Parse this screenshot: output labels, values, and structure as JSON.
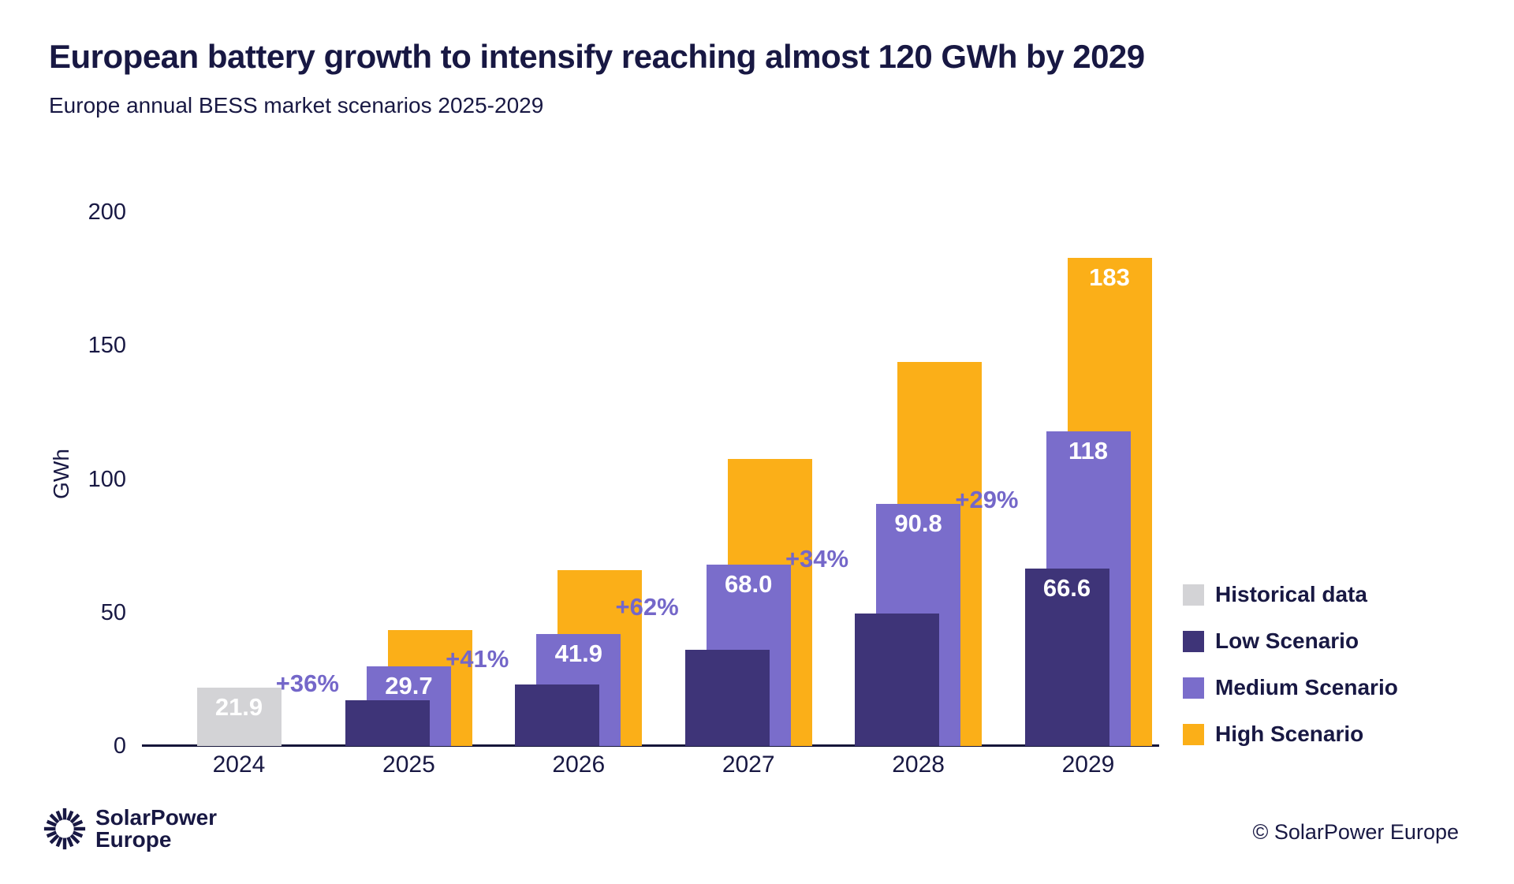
{
  "header": {
    "title": "European battery growth to intensify reaching almost 120 GWh by 2029",
    "subtitle": "Europe annual BESS market scenarios 2025-2029"
  },
  "chart_data": {
    "type": "bar",
    "title": "Europe annual BESS market scenarios 2025-2029",
    "ylabel": "GWh",
    "unit": "GWh",
    "ylim": [
      0,
      200
    ],
    "yticks": [
      0,
      50,
      100,
      150,
      200
    ],
    "grid": false,
    "legend_position": "right",
    "categories": [
      "2024",
      "2025",
      "2026",
      "2027",
      "2028",
      "2029"
    ],
    "series": [
      {
        "name": "Historical data",
        "color": "#D3D3D6",
        "values": [
          21.9,
          null,
          null,
          null,
          null,
          null
        ],
        "labels": [
          "21.9",
          null,
          null,
          null,
          null,
          null
        ]
      },
      {
        "name": "Low Scenario",
        "color": "#3E3478",
        "values": [
          null,
          17,
          23,
          36,
          49.5,
          66.6
        ],
        "labels": [
          null,
          null,
          null,
          null,
          null,
          "66.6"
        ]
      },
      {
        "name": "Medium Scenario",
        "color": "#7A6DCB",
        "values": [
          null,
          29.7,
          41.9,
          68.0,
          90.8,
          118
        ],
        "labels": [
          null,
          "29.7",
          "41.9",
          "68.0",
          "90.8",
          "118"
        ]
      },
      {
        "name": "High Scenario",
        "color": "#FBAF18",
        "values": [
          null,
          43.5,
          66,
          107.5,
          144,
          183
        ],
        "labels": [
          null,
          null,
          null,
          null,
          null,
          "183"
        ]
      }
    ],
    "growth_labels": [
      {
        "text": "+36%",
        "to_category": "2025"
      },
      {
        "text": "+41%",
        "to_category": "2026"
      },
      {
        "text": "+62%",
        "to_category": "2027"
      },
      {
        "text": "+34%",
        "to_category": "2028"
      },
      {
        "text": "+29%",
        "to_category": "2029"
      }
    ]
  },
  "colors": {
    "text": "#181843",
    "growth_text": "#7467C9",
    "axis_line": "#16163A",
    "value_label_text": "#FFFFFF"
  },
  "footer": {
    "logo_line1": "SolarPower",
    "logo_line2": "Europe",
    "copyright_symbol": "©",
    "copyright_text": "SolarPower Europe"
  }
}
